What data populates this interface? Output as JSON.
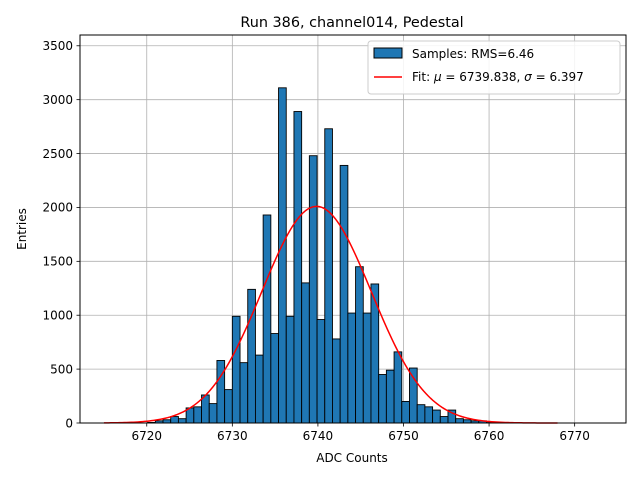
{
  "chart_data": {
    "type": "bar",
    "title": "Run 386, channel014, Pedestal",
    "xlabel": "ADC Counts",
    "ylabel": "Entries",
    "xlim": [
      6712.2,
      6776.0
    ],
    "ylim": [
      0,
      3600
    ],
    "xticks": [
      6720,
      6730,
      6740,
      6750,
      6760,
      6770
    ],
    "yticks": [
      0,
      500,
      1000,
      1500,
      2000,
      2500,
      3000,
      3500
    ],
    "grid": true,
    "legend_position": "top-right",
    "bar_color": "#1f77b4",
    "fit_color": "#ff0000",
    "histogram": {
      "name": "Samples: RMS=6.46",
      "bin_width": 0.9,
      "bin_starts": [
        6720.1,
        6721.0,
        6721.9,
        6722.8,
        6723.7,
        6724.6,
        6725.5,
        6726.4,
        6727.3,
        6728.2,
        6729.1,
        6730.0,
        6730.9,
        6731.8,
        6732.7,
        6733.6,
        6734.5,
        6735.4,
        6736.3,
        6737.2,
        6738.1,
        6739.0,
        6739.9,
        6740.8,
        6741.7,
        6742.6,
        6743.5,
        6744.4,
        6745.3,
        6746.2,
        6747.1,
        6748.0,
        6748.9,
        6749.8,
        6750.7,
        6751.6,
        6752.5,
        6753.4,
        6754.3,
        6755.2,
        6756.1,
        6757.0,
        6757.9,
        6758.8,
        6759.7,
        6760.6
      ],
      "counts": [
        5,
        20,
        30,
        60,
        40,
        140,
        150,
        260,
        180,
        580,
        310,
        990,
        560,
        1240,
        630,
        1930,
        830,
        3110,
        990,
        2890,
        1300,
        2480,
        960,
        2730,
        780,
        2390,
        1020,
        1450,
        1020,
        1290,
        450,
        490,
        660,
        200,
        510,
        170,
        150,
        120,
        60,
        120,
        40,
        30,
        20,
        20,
        10,
        5
      ]
    },
    "fit": {
      "name": "Fit: $\\mu$ = 6739.838, $\\sigma$ = 6.397",
      "label_parts": [
        "Fit: ",
        "μ",
        " = 6739.838, ",
        "σ",
        " = 6.397"
      ],
      "mu": 6739.838,
      "sigma": 6.397,
      "amplitude": 2010,
      "x_range": [
        6715.0,
        6768.0
      ]
    }
  }
}
